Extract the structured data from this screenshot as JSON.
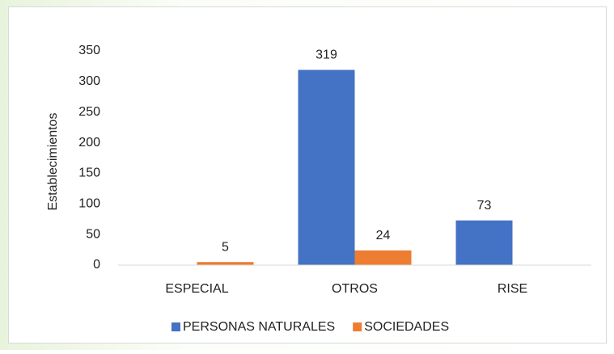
{
  "chart_data": {
    "type": "bar",
    "y_axis_label": "Establecimientos",
    "categories": [
      "ESPECIAL",
      "OTROS",
      "RISE"
    ],
    "series": [
      {
        "name": "PERSONAS NATURALES",
        "color": "#4472c4",
        "values": [
          null,
          319,
          73
        ]
      },
      {
        "name": "SOCIEDADES",
        "color": "#ed7d31",
        "values": [
          5,
          24,
          null
        ]
      }
    ],
    "ylim": [
      0,
      350
    ],
    "yticks": [
      0,
      50,
      100,
      150,
      200,
      250,
      300,
      350
    ],
    "grid": false,
    "legend": "bottom"
  }
}
